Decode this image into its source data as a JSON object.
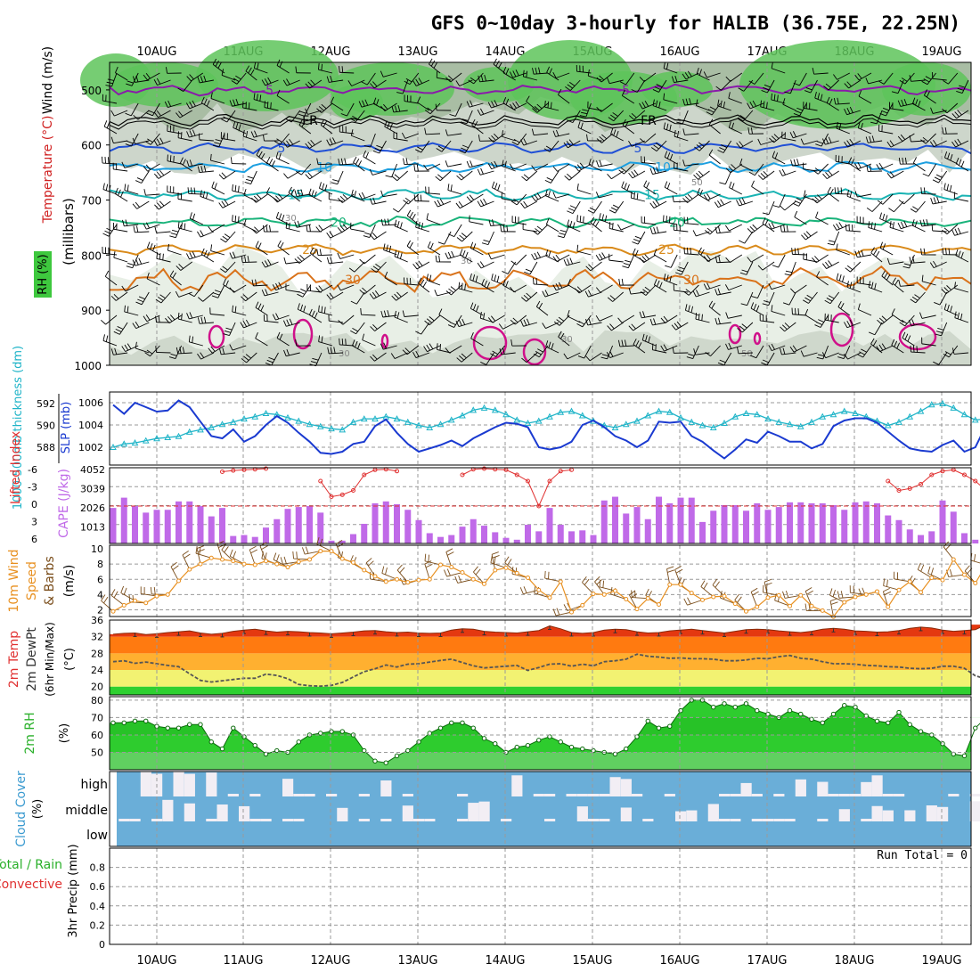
{
  "chart_data": [
    {
      "type": "meteogram-header",
      "title": "GFS 0~10day 3-hourly for HALIB (36.75E, 22.25N)",
      "date_labels": [
        "10AUG",
        "11AUG",
        "12AUG",
        "13AUG",
        "14AUG",
        "15AUG",
        "16AUG",
        "17AUG",
        "18AUG",
        "19AUG"
      ]
    },
    {
      "type": "contour",
      "name": "upper-air",
      "ylabel_lines": [
        "Wind (m/s)",
        "Temperature (°C)",
        "RH (%)",
        "(millibars)"
      ],
      "ylim": [
        1000,
        450
      ],
      "yticks": [
        500,
        600,
        700,
        800,
        900,
        1000
      ],
      "temperature_isotherms": [
        {
          "label": "-5",
          "level_mb": 500,
          "color": "#8a1aaa"
        },
        {
          "label": "FR",
          "level_mb": 555,
          "color": "#000000"
        },
        {
          "label": "5",
          "level_mb": 605,
          "color": "#1f4fd6"
        },
        {
          "label": "10",
          "level_mb": 640,
          "color": "#1c9fe0"
        },
        {
          "label": "15",
          "level_mb": 690,
          "color": "#19b3b3"
        },
        {
          "label": "20",
          "level_mb": 740,
          "color": "#19b37a"
        },
        {
          "label": "25",
          "level_mb": 790,
          "color": "#d98a1a"
        },
        {
          "label": "30",
          "level_mb": 845,
          "color": "#d9721a"
        }
      ],
      "rh_labels": [
        "30",
        "50"
      ]
    },
    {
      "type": "line",
      "name": "thickness-slp",
      "ylabel_left": "1000-500mb thickness (dm)",
      "ylabel_right": "SLP (mb)",
      "left_ticks": [
        592,
        590,
        588
      ],
      "right_ticks": [
        1006,
        1004,
        1002
      ],
      "series": [
        {
          "name": "SLP",
          "color": "#1a3ad0",
          "values": [
            1005.8,
            1005.0,
            1006.0,
            1005.6,
            1005.2,
            1005.3,
            1006.2,
            1005.6,
            1004.3,
            1003.0,
            1002.8,
            1003.6,
            1002.5,
            1003.0,
            1004.0,
            1004.8,
            1004.2,
            1003.3,
            1002.5,
            1001.5,
            1001.4,
            1001.6,
            1002.3,
            1002.5,
            1003.9,
            1004.5,
            1003.3,
            1002.3,
            1001.6,
            1001.9,
            1002.2,
            1002.6,
            1002.1,
            1002.8,
            1003.3,
            1003.8,
            1004.2,
            1004.1,
            1003.8,
            1002.0,
            1001.8,
            1002.0,
            1002.5,
            1004.0,
            1004.4,
            1003.8,
            1003.0,
            1002.6,
            1002.0,
            1002.6,
            1004.3,
            1004.2,
            1004.3,
            1003.0,
            1002.5,
            1001.7,
            1001.0,
            1001.8,
            1002.7,
            1002.4,
            1003.4,
            1003.0,
            1002.5,
            1002.5,
            1001.9,
            1002.3,
            1003.9,
            1004.4,
            1004.6,
            1004.6,
            1004.2,
            1003.4,
            1002.6,
            1001.9,
            1001.7,
            1001.6,
            1002.2,
            1002.6,
            1001.6,
            1002.0,
            1004.0
          ]
        },
        {
          "name": "Thickness",
          "color": "#1fb4c8",
          "values": [
            588.0,
            588.3,
            588.4,
            588.6,
            588.8,
            588.9,
            589.0,
            589.4,
            589.6,
            589.8,
            590.1,
            590.3,
            590.6,
            590.8,
            591.1,
            591.0,
            590.7,
            590.4,
            590.1,
            589.9,
            589.7,
            589.6,
            590.3,
            590.6,
            590.6,
            590.8,
            590.6,
            590.3,
            590.0,
            589.8,
            590.1,
            590.5,
            590.9,
            591.4,
            591.6,
            591.4,
            591.0,
            590.5,
            590.2,
            590.4,
            590.8,
            591.2,
            591.3,
            590.9,
            590.4,
            590.0,
            589.8,
            590.1,
            590.4,
            590.9,
            591.3,
            591.2,
            590.7,
            590.3,
            590.0,
            589.8,
            590.2,
            590.8,
            591.1,
            591.0,
            590.6,
            590.3,
            590.1,
            589.9,
            590.3,
            590.8,
            591.0,
            591.3,
            591.1,
            590.8,
            590.4,
            590.0,
            590.3,
            590.8,
            591.3,
            591.9,
            592.0,
            591.6,
            591.0,
            590.5,
            590.6
          ]
        }
      ]
    },
    {
      "type": "bar+line",
      "name": "cape-lifted-index",
      "ylabel_left": "Lifted Index",
      "ylabel_right": "CAPE (J/kg)",
      "left_ticks": [
        "-6",
        "-3",
        "0",
        "3",
        "6"
      ],
      "right_ticks": [
        "4052",
        "3039",
        "2026",
        "1013"
      ],
      "cape_values": [
        1900,
        2450,
        2000,
        1650,
        1800,
        1800,
        2250,
        2250,
        2000,
        1450,
        1900,
        400,
        450,
        350,
        850,
        1300,
        1850,
        1950,
        2000,
        1650,
        150,
        150,
        500,
        1050,
        2150,
        2250,
        2100,
        1800,
        1250,
        550,
        350,
        450,
        900,
        1300,
        950,
        600,
        300,
        200,
        1000,
        650,
        1900,
        1000,
        650,
        700,
        450,
        2300,
        2500,
        1600,
        1950,
        1300,
        2500,
        2150,
        2450,
        2450,
        1150,
        1750,
        2050,
        2050,
        1750,
        2150,
        1800,
        1950,
        2200,
        2200,
        2150,
        2150,
        2050,
        1800,
        2200,
        2250,
        2150,
        1500,
        1250,
        750,
        450,
        650,
        2300,
        1700,
        550,
        200,
        150
      ],
      "li_values": [
        null,
        null,
        null,
        null,
        null,
        null,
        null,
        null,
        null,
        null,
        -5.5,
        -5.7,
        -5.8,
        -5.9,
        -6,
        null,
        null,
        null,
        null,
        -4.0,
        -1.5,
        -1.8,
        -2.5,
        -5.0,
        -5.8,
        -5.9,
        -5.6,
        null,
        null,
        null,
        null,
        null,
        -5.0,
        -5.9,
        -6.0,
        -5.9,
        -5.8,
        -5.0,
        -4.0,
        0.0,
        -4.0,
        -5.6,
        -5.8,
        null,
        null,
        null,
        null,
        null,
        null,
        null,
        null,
        null,
        null,
        null,
        null,
        null,
        null,
        null,
        null,
        null,
        null,
        null,
        null,
        null,
        null,
        null,
        null,
        null,
        null,
        null,
        null,
        -4.0,
        -2.5,
        -2.8,
        -3.5,
        -5.0,
        -5.6,
        -5.8,
        -5.0,
        -4.0,
        -2.5
      ]
    },
    {
      "type": "line+barbs",
      "name": "wind-10m",
      "ylabel_lines": [
        "10m Wind",
        "Speed",
        "& Barbs",
        "(m/s)"
      ],
      "ylim": [
        1,
        10
      ],
      "yticks": [
        2,
        4,
        6,
        8,
        10
      ],
      "values": [
        1.8,
        2.6,
        3.2,
        2.9,
        3.8,
        4.0,
        5.8,
        7.3,
        8.0,
        8.8,
        8.6,
        8.4,
        8.0,
        7.9,
        8.4,
        8.0,
        7.6,
        8.3,
        8.6,
        9.7,
        9.7,
        8.7,
        8.2,
        7.2,
        6.4,
        5.7,
        6.0,
        5.6,
        5.9,
        6.0,
        7.9,
        7.6,
        6.9,
        6.0,
        5.4,
        7.2,
        7.5,
        6.8,
        6.2,
        4.6,
        3.6,
        5.7,
        1.7,
        2.6,
        4.1,
        4.0,
        4.5,
        3.4,
        2.1,
        3.5,
        2.7,
        5.3,
        5.3,
        4.2,
        3.3,
        3.7,
        3.8,
        2.8,
        1.8,
        2.4,
        3.6,
        3.9,
        2.5,
        3.9,
        2.5,
        1.9,
        1.1,
        3.0,
        3.7,
        4.0,
        4.4,
        2.4,
        4.6,
        5.7,
        4.3,
        6.2,
        5.9,
        8.6,
        6.6,
        5.5,
        7.9
      ]
    },
    {
      "type": "area+line",
      "name": "temp-dewpoint",
      "ylabel_lines": [
        "2m Temp",
        "2m DewPt",
        "(6hr Min/Max)"
      ],
      "ylim": [
        18,
        36
      ],
      "yticks": [
        20,
        24,
        28,
        32,
        36
      ],
      "temp_values": [
        32.6,
        32.8,
        32.9,
        32.5,
        32.7,
        33.0,
        33.2,
        33.4,
        32.9,
        32.6,
        32.8,
        33.3,
        33.6,
        33.8,
        33.4,
        33.1,
        33.3,
        33.2,
        33.0,
        32.9,
        32.7,
        32.9,
        33.1,
        33.4,
        33.5,
        33.2,
        33.0,
        33.1,
        32.9,
        32.8,
        32.9,
        33.6,
        33.9,
        33.8,
        33.3,
        33.1,
        33.0,
        32.9,
        33.2,
        33.5,
        34.6,
        33.9,
        33.0,
        32.8,
        33.0,
        33.6,
        33.8,
        33.7,
        33.2,
        32.9,
        33.0,
        33.4,
        33.6,
        33.8,
        33.5,
        33.2,
        32.9,
        33.3,
        33.7,
        33.8,
        33.7,
        33.4,
        33.2,
        33.0,
        33.3,
        33.8,
        34.0,
        33.8,
        33.4,
        33.3,
        33.1,
        33.2,
        33.5,
        34.0,
        34.3,
        34.1,
        33.6,
        33.3,
        33.5,
        33.7,
        34.9
      ],
      "dewpoint_values": [
        26.0,
        26.2,
        25.6,
        25.9,
        25.5,
        25.1,
        24.8,
        23.1,
        21.5,
        21.1,
        21.4,
        21.7,
        22.0,
        22.0,
        23.0,
        22.7,
        21.9,
        20.5,
        20.2,
        20.1,
        20.3,
        21.0,
        22.3,
        23.6,
        24.3,
        25.2,
        24.7,
        25.4,
        25.5,
        25.9,
        26.3,
        26.6,
        25.8,
        25.0,
        24.5,
        24.7,
        24.9,
        25.1,
        23.9,
        24.6,
        25.4,
        25.5,
        24.9,
        25.4,
        25.0,
        26.0,
        26.2,
        26.6,
        27.8,
        27.3,
        27.1,
        26.8,
        26.9,
        26.7,
        26.7,
        26.6,
        26.2,
        26.2,
        26.4,
        26.8,
        26.7,
        27.2,
        27.5,
        26.8,
        26.6,
        26.0,
        25.5,
        25.5,
        25.4,
        25.1,
        25.0,
        24.8,
        24.7,
        24.4,
        24.3,
        24.4,
        24.9,
        24.9,
        24.4,
        22.6,
        21.8
      ]
    },
    {
      "type": "area",
      "name": "rh-2m",
      "ylabel": "2m RH (%)",
      "ylim": [
        40,
        82
      ],
      "yticks": [
        50,
        60,
        70,
        80
      ],
      "values": [
        67,
        67,
        68,
        68,
        65,
        64,
        64,
        66,
        66,
        56,
        52,
        64,
        59,
        54,
        49,
        51,
        50,
        56,
        60,
        61,
        62,
        62,
        60,
        51,
        45,
        44,
        48,
        51,
        56,
        61,
        64,
        67,
        67,
        64,
        58,
        55,
        50,
        53,
        54,
        57,
        59,
        56,
        53,
        52,
        51,
        50,
        49,
        52,
        59,
        68,
        64,
        65,
        74,
        80,
        80,
        76,
        78,
        76,
        78,
        74,
        72,
        70,
        74,
        72,
        69,
        67,
        72,
        77,
        76,
        71,
        68,
        67,
        73,
        66,
        62,
        60,
        55,
        49,
        48,
        64,
        70
      ]
    },
    {
      "type": "heatmap",
      "name": "cloud-cover",
      "ylabel": "Cloud Cover (%)",
      "row_labels": [
        "high",
        "middle",
        "low"
      ]
    },
    {
      "type": "bar",
      "name": "precip",
      "ylabel_left_lines": [
        "Total / Rain",
        "Convective"
      ],
      "ylabel": "3hr Precip (mm)",
      "ylim": [
        0,
        1.0
      ],
      "yticks": [
        "0",
        "0.2",
        "0.4",
        "0.6",
        "0.8"
      ],
      "run_total_label": "Run Total = 0",
      "values": []
    }
  ]
}
